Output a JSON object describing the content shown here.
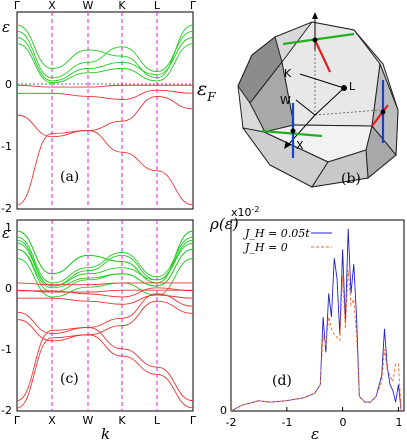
{
  "colors": {
    "conduction": "#22cc22",
    "valence": "#ee3333",
    "symmetry_line": "#dd22dd",
    "fermi_line": "#6666aa",
    "dos_jh": "#2222cc",
    "dos_j0": "#ff6622",
    "bz_blue": "#1a3fd1",
    "bz_red": "#e02020",
    "bz_green": "#22b022"
  },
  "band_a": {
    "label": "(a)",
    "ylabel": "ε",
    "k_labels": [
      "Γ",
      "X",
      "W",
      "K",
      "L",
      "Γ"
    ],
    "y_ticks": [
      "0",
      "-1",
      "-2"
    ],
    "fermi_label": "ε",
    "fermi_sub": "F"
  },
  "band_c": {
    "label": "(c)",
    "ylabel": "ε",
    "k_labels": [
      "Γ",
      "X",
      "W",
      "K",
      "L",
      "Γ"
    ],
    "y_ticks": [
      "1",
      "0",
      "-1",
      "-2"
    ],
    "xlabel": "k"
  },
  "bz": {
    "label": "(b)",
    "points": [
      "K",
      "L",
      "W",
      "X"
    ]
  },
  "dos": {
    "label": "(d)",
    "ylabel": "ρ(ε)",
    "scale_label": "x10",
    "scale_exp": "-2",
    "xlabel": "ε",
    "x_ticks": [
      "-2",
      "-1",
      "0",
      "1"
    ],
    "y_ticks": [
      "0",
      "2",
      "4",
      "6"
    ],
    "legend": [
      "J_H = 0.05t",
      "J_H = 0"
    ]
  },
  "chart_data": [
    {
      "type": "line",
      "title": "",
      "xlabel": "",
      "ylabel": "ε",
      "x_ticks": [
        "Γ",
        "X",
        "W",
        "K",
        "L",
        "Γ"
      ],
      "ylim": [
        -2,
        1.2
      ],
      "note": "band structure, panel (a)"
    },
    {
      "type": "line",
      "title": "",
      "xlabel": "k",
      "ylabel": "ε",
      "x_ticks": [
        "Γ",
        "X",
        "W",
        "K",
        "L",
        "Γ"
      ],
      "ylim": [
        -2,
        1.2
      ],
      "note": "band structure, panel (c)"
    },
    {
      "type": "line",
      "title": "",
      "xlabel": "ε",
      "ylabel": "ρ(ε)",
      "xlim": [
        -2,
        1.1
      ],
      "ylim": [
        0,
        6.5
      ],
      "series": [
        {
          "name": "J_H = 0.05t",
          "x": [
            -2.0,
            -1.8,
            -1.5,
            -1.3,
            -1.0,
            -0.7,
            -0.5,
            -0.4,
            -0.35,
            -0.3,
            -0.25,
            -0.2,
            -0.15,
            -0.1,
            -0.05,
            0.0,
            0.05,
            0.1,
            0.15,
            0.2,
            0.25,
            0.3,
            0.4,
            0.5,
            0.6,
            0.7,
            0.75,
            0.8,
            0.85,
            0.9,
            0.95,
            1.0,
            1.05
          ],
          "y": [
            0.0,
            0.2,
            0.35,
            0.3,
            0.35,
            0.45,
            0.6,
            0.9,
            3.2,
            2.0,
            4.0,
            3.2,
            5.2,
            4.5,
            2.6,
            5.5,
            3.0,
            6.2,
            4.0,
            5.0,
            3.2,
            0.5,
            0.3,
            0.3,
            0.5,
            1.2,
            2.8,
            1.5,
            0.9,
            0.7,
            0.3,
            0.9,
            0.0
          ]
        },
        {
          "name": "J_H = 0",
          "x": [
            -2.0,
            -1.8,
            -1.5,
            -1.3,
            -1.0,
            -0.7,
            -0.5,
            -0.4,
            -0.35,
            -0.3,
            -0.25,
            -0.2,
            -0.15,
            -0.1,
            -0.05,
            0.0,
            0.05,
            0.1,
            0.15,
            0.2,
            0.25,
            0.3,
            0.4,
            0.5,
            0.6,
            0.7,
            0.75,
            0.8,
            0.85,
            0.9,
            0.95,
            1.0,
            1.05
          ],
          "y": [
            0.0,
            0.2,
            0.35,
            0.3,
            0.35,
            0.45,
            0.6,
            0.9,
            2.6,
            2.2,
            3.2,
            2.8,
            2.6,
            2.5,
            2.4,
            4.6,
            2.8,
            4.8,
            3.6,
            3.8,
            2.6,
            0.5,
            0.3,
            0.3,
            0.5,
            1.0,
            2.1,
            1.4,
            1.2,
            1.0,
            1.6,
            1.6,
            0.0
          ]
        }
      ]
    }
  ]
}
